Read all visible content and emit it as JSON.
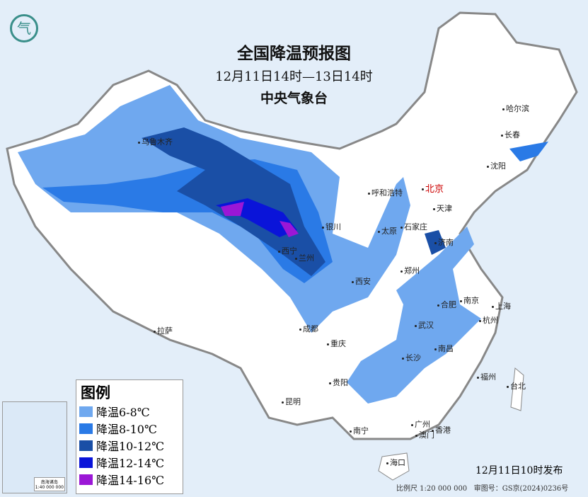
{
  "header": {
    "title": "全国降温预报图",
    "period": "12月11日14时—13日14时",
    "issuer": "中央气象台"
  },
  "legend": {
    "title": "图例",
    "items": [
      {
        "label": "降温6-8℃",
        "color": "#6fa8ef"
      },
      {
        "label": "降温8-10℃",
        "color": "#2a7ae6"
      },
      {
        "label": "降温10-12℃",
        "color": "#1a4fa6"
      },
      {
        "label": "降温12-14℃",
        "color": "#0a14d9"
      },
      {
        "label": "降温14-16℃",
        "color": "#9b17d6"
      }
    ]
  },
  "cities": [
    {
      "name": "乌鲁木齐"
    },
    {
      "name": "哈尔滨"
    },
    {
      "name": "长春"
    },
    {
      "name": "沈阳"
    },
    {
      "name": "北京",
      "capital": true
    },
    {
      "name": "天津"
    },
    {
      "name": "呼和浩特"
    },
    {
      "name": "银川"
    },
    {
      "name": "石家庄"
    },
    {
      "name": "太原"
    },
    {
      "name": "济南"
    },
    {
      "name": "西宁"
    },
    {
      "name": "兰州"
    },
    {
      "name": "郑州"
    },
    {
      "name": "西安"
    },
    {
      "name": "合肥"
    },
    {
      "name": "南京"
    },
    {
      "name": "上海"
    },
    {
      "name": "武汉"
    },
    {
      "name": "杭州"
    },
    {
      "name": "成都"
    },
    {
      "name": "重庆"
    },
    {
      "name": "长沙"
    },
    {
      "name": "南昌"
    },
    {
      "name": "拉萨"
    },
    {
      "name": "贵阳"
    },
    {
      "name": "福州"
    },
    {
      "name": "台北"
    },
    {
      "name": "昆明"
    },
    {
      "name": "南宁"
    },
    {
      "name": "广州"
    },
    {
      "name": "澳门"
    },
    {
      "name": "香港"
    },
    {
      "name": "海口"
    }
  ],
  "inset": {
    "caption1": "南海诸岛",
    "caption2": "1:40 000 000"
  },
  "footer": {
    "published": "12月11日10时发布",
    "scale": "比例尺 1:20 000 000",
    "approval": "审图号：GS京(2024)0236号"
  },
  "logo": {
    "icon": "cma-logo"
  }
}
